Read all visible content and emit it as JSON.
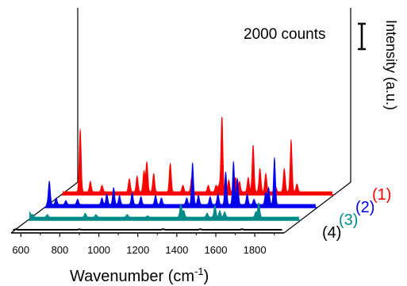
{
  "chart_data": {
    "type": "line",
    "title": "",
    "xlabel": "Wavenumber (cm",
    "xlabel_sup": "-1",
    "xlabel_close": ")",
    "ylabel": "Intensity (a.u.)",
    "xlim": [
      550,
      1950
    ],
    "x_ticks": [
      600,
      800,
      1000,
      1200,
      1400,
      1600,
      1800
    ],
    "scale_bar": {
      "label": "2000 counts",
      "value": 2000
    },
    "grid": false,
    "series": [
      {
        "name": "(1)",
        "color": "#ff0000",
        "filled": true,
        "peaks": [
          [
            648,
            4800
          ],
          [
            700,
            800
          ],
          [
            760,
            500
          ],
          [
            900,
            1000
          ],
          [
            940,
            1200
          ],
          [
            975,
            1600
          ],
          [
            990,
            2300
          ],
          [
            1025,
            1400
          ],
          [
            1110,
            2200
          ],
          [
            1175,
            500
          ],
          [
            1220,
            1100
          ],
          [
            1305,
            500
          ],
          [
            1345,
            500
          ],
          [
            1360,
            500
          ],
          [
            1375,
            5800
          ],
          [
            1410,
            900
          ],
          [
            1445,
            1100
          ],
          [
            1465,
            800
          ],
          [
            1510,
            1100
          ],
          [
            1535,
            3600
          ],
          [
            1570,
            1800
          ],
          [
            1600,
            1400
          ],
          [
            1650,
            400
          ],
          [
            1695,
            1800
          ],
          [
            1730,
            4000
          ],
          [
            1760,
            600
          ]
        ]
      },
      {
        "name": "(2)",
        "color": "#0000ee",
        "filled": true,
        "peaks": [
          [
            575,
            1800
          ],
          [
            610,
            500
          ],
          [
            660,
            300
          ],
          [
            720,
            400
          ],
          [
            845,
            500
          ],
          [
            870,
            800
          ],
          [
            905,
            1300
          ],
          [
            935,
            700
          ],
          [
            1000,
            900
          ],
          [
            1045,
            600
          ],
          [
            1120,
            700
          ],
          [
            1150,
            500
          ],
          [
            1280,
            500
          ],
          [
            1310,
            3200
          ],
          [
            1340,
            700
          ],
          [
            1400,
            600
          ],
          [
            1440,
            800
          ],
          [
            1480,
            2500
          ],
          [
            1520,
            3300
          ],
          [
            1540,
            2000
          ],
          [
            1590,
            800
          ],
          [
            1625,
            400
          ],
          [
            1685,
            900
          ],
          [
            1700,
            1300
          ],
          [
            1730,
            3600
          ]
        ]
      },
      {
        "name": "(3)",
        "color": "#008b8b",
        "filled": true,
        "peaks": [
          [
            560,
            400
          ],
          [
            575,
            200
          ],
          [
            650,
            200
          ],
          [
            845,
            300
          ],
          [
            900,
            200
          ],
          [
            1060,
            200
          ],
          [
            1165,
            100
          ],
          [
            1335,
            1000
          ],
          [
            1350,
            500
          ],
          [
            1470,
            300
          ],
          [
            1510,
            900
          ],
          [
            1535,
            500
          ],
          [
            1560,
            400
          ],
          [
            1720,
            400
          ],
          [
            1735,
            1100
          ]
        ]
      },
      {
        "name": "(4)",
        "color": "#000000",
        "filled": false,
        "peaks": [
          [
            575,
            40
          ],
          [
            900,
            30
          ],
          [
            1330,
            50
          ],
          [
            1520,
            40
          ],
          [
            1735,
            40
          ]
        ]
      }
    ]
  }
}
